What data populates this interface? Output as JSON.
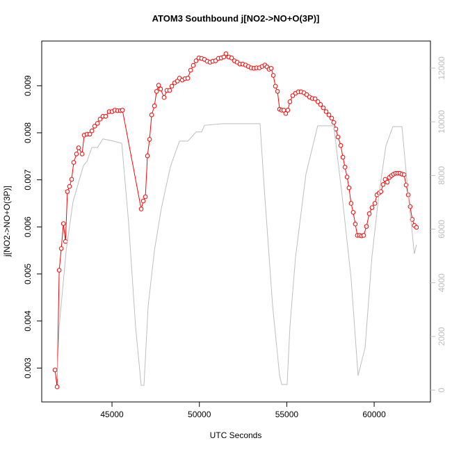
{
  "chart_data": {
    "type": "line",
    "title": "ATOM3 Southbound j[NO2->NO+O(3P)]",
    "xlabel": "UTC Seconds",
    "ylabel": "j[NO2->NO+O(3P)]",
    "xlim": [
      40980,
      63220
    ],
    "xticks": [
      45000,
      50000,
      55000,
      60000
    ],
    "ylim": [
      0.00228,
      0.00995
    ],
    "yticks": [
      0.003,
      0.004,
      0.005,
      0.006,
      0.007,
      0.008,
      0.009
    ],
    "y2lim": [
      -440,
      13010
    ],
    "y2ticks": [
      0,
      2000,
      4000,
      6000,
      8000,
      10000,
      12000
    ],
    "y2color": "#bebebe",
    "series": [
      {
        "color": "#ff0000",
        "markers": true,
        "x": [
          41740,
          41860,
          41980,
          42100,
          42220,
          42340,
          42450,
          42570,
          42690,
          42810,
          42970,
          43090,
          43290,
          43410,
          43570,
          43730,
          43850,
          44010,
          44170,
          44320,
          44480,
          44640,
          44840,
          45000,
          45160,
          45320,
          45480,
          45600,
          46670,
          46790,
          46910,
          47030,
          47150,
          47270,
          47430,
          47550,
          47670,
          47780,
          47980,
          48140,
          48300,
          48420,
          48580,
          48740,
          48860,
          49020,
          49180,
          49340,
          49500,
          49650,
          49810,
          49970,
          50130,
          50290,
          50450,
          50610,
          50770,
          50930,
          51090,
          51250,
          51400,
          51520,
          51680,
          51840,
          52000,
          52160,
          52320,
          52480,
          52640,
          52800,
          52960,
          53120,
          53270,
          53430,
          53590,
          53750,
          53870,
          53990,
          54110,
          54230,
          54350,
          54470,
          54590,
          54710,
          54830,
          54940,
          55060,
          55180,
          55340,
          55500,
          55660,
          55820,
          55980,
          56140,
          56300,
          56460,
          56620,
          56780,
          56930,
          57090,
          57250,
          57410,
          57570,
          57690,
          57810,
          57930,
          58090,
          58210,
          58330,
          58450,
          58560,
          58680,
          58800,
          58920,
          59040,
          59160,
          59280,
          59400,
          59560,
          59720,
          59880,
          60040,
          60160,
          60280,
          60390,
          60510,
          60630,
          60750,
          60870,
          60990,
          61110,
          61230,
          61350,
          61470,
          61590,
          61710,
          61830,
          61950,
          62060,
          62180,
          62300,
          62420
        ],
        "values": [
          0.00296,
          0.0026,
          0.00508,
          0.00554,
          0.00607,
          0.00569,
          0.00675,
          0.00686,
          0.00701,
          0.00737,
          0.00755,
          0.00768,
          0.00755,
          0.00795,
          0.00797,
          0.00797,
          0.00804,
          0.00814,
          0.0082,
          0.00829,
          0.00835,
          0.00835,
          0.00845,
          0.00845,
          0.00848,
          0.00847,
          0.00847,
          0.00848,
          0.00638,
          0.00655,
          0.00664,
          0.00751,
          0.00786,
          0.00838,
          0.00857,
          0.00888,
          0.00901,
          0.00893,
          0.00875,
          0.0089,
          0.0089,
          0.00899,
          0.00906,
          0.0091,
          0.00916,
          0.00912,
          0.00915,
          0.00916,
          0.00933,
          0.00943,
          0.00953,
          0.00959,
          0.00958,
          0.00956,
          0.00952,
          0.0095,
          0.00952,
          0.00953,
          0.00958,
          0.00959,
          0.00961,
          0.00968,
          0.00961,
          0.00959,
          0.00953,
          0.0095,
          0.00946,
          0.00946,
          0.00944,
          0.00941,
          0.00938,
          0.00937,
          0.00938,
          0.00938,
          0.00941,
          0.00944,
          0.0094,
          0.00935,
          0.00937,
          0.00922,
          0.00899,
          0.00888,
          0.0085,
          0.00848,
          0.00848,
          0.00841,
          0.00848,
          0.00866,
          0.00879,
          0.00884,
          0.00887,
          0.00887,
          0.00885,
          0.00881,
          0.00876,
          0.00873,
          0.00872,
          0.00866,
          0.0086,
          0.00853,
          0.00845,
          0.00838,
          0.00831,
          0.00822,
          0.00808,
          0.00791,
          0.00773,
          0.00748,
          0.00727,
          0.00706,
          0.00683,
          0.0065,
          0.00631,
          0.00606,
          0.00582,
          0.00582,
          0.00581,
          0.00582,
          0.00601,
          0.00628,
          0.00641,
          0.0065,
          0.00668,
          0.00672,
          0.00675,
          0.0069,
          0.00701,
          0.00695,
          0.00705,
          0.00709,
          0.00712,
          0.00714,
          0.00714,
          0.00714,
          0.00712,
          0.00711,
          0.00689,
          0.00668,
          0.00643,
          0.00616,
          0.00603,
          0.00599
        ]
      },
      {
        "color": "#bebebe",
        "axis": "y2",
        "markers": false,
        "x": [
          41860,
          41980,
          42380,
          42770,
          43170,
          43370,
          43570,
          43850,
          44170,
          44480,
          44960,
          45560,
          45950,
          46350,
          46670,
          46830,
          47070,
          47430,
          47820,
          48340,
          48860,
          49340,
          49810,
          50130,
          50290,
          51330,
          53470,
          53710,
          54190,
          54590,
          54710,
          55020,
          55180,
          55500,
          56100,
          56770,
          57690,
          58160,
          58680,
          59080,
          59480,
          59870,
          60270,
          60670,
          61070,
          61590,
          61950,
          62300,
          62420
        ],
        "values": [
          415,
          2360,
          5210,
          7020,
          7930,
          8370,
          8530,
          9045,
          9045,
          9360,
          9300,
          9200,
          6250,
          2360,
          180,
          180,
          3140,
          5210,
          6760,
          8320,
          9280,
          9280,
          9620,
          9620,
          9870,
          9930,
          9930,
          7540,
          3140,
          540,
          210,
          210,
          2360,
          4950,
          8060,
          9850,
          9850,
          7280,
          4170,
          540,
          1580,
          4950,
          7280,
          9100,
          9820,
          9820,
          7280,
          5080,
          5420
        ]
      }
    ]
  }
}
